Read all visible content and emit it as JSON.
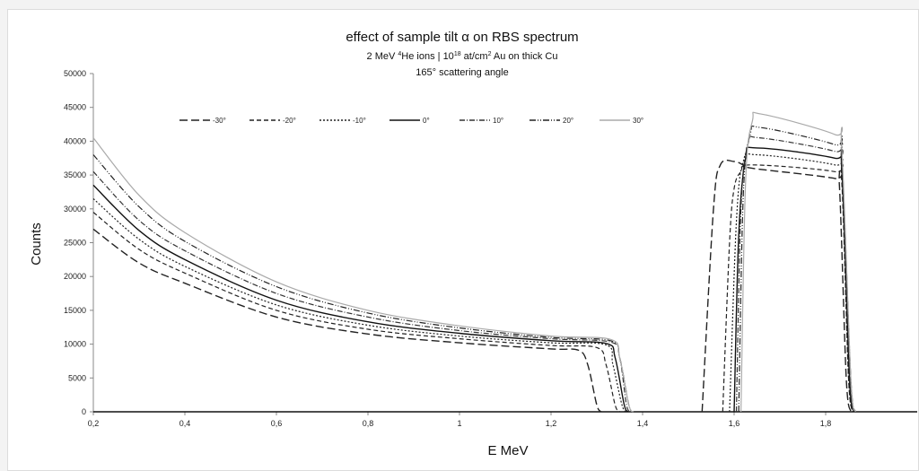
{
  "chart_data": {
    "type": "line",
    "title": "effect of sample tilt α on RBS spectrum",
    "subtitle_parts": {
      "a": "2 MeV ",
      "sup1": "4",
      "b": "He ions  |  10",
      "sup2": "18",
      "c": " at/cm",
      "sup3": "2",
      "d": " Au on thick Cu"
    },
    "subtitle2": "165° scattering angle",
    "xlabel": "E MeV",
    "ylabel": "Counts",
    "xlim": [
      0.2,
      2.0
    ],
    "ylim": [
      0,
      50000
    ],
    "x_ticks": [
      "0,2",
      "0,4",
      "0,6",
      "0,8",
      "1",
      "1,2",
      "1,4",
      "1,6",
      "1,8"
    ],
    "y_ticks": [
      "0",
      "5000",
      "10000",
      "15000",
      "20000",
      "25000",
      "30000",
      "35000",
      "40000",
      "45000",
      "50000"
    ],
    "grid": false,
    "legend_placement": "top-center",
    "series": [
      {
        "name": "-30°",
        "dash": "9,4",
        "stroke": "#222",
        "width": 1.4,
        "cu": [
          [
            0.2,
            27000
          ],
          [
            0.3,
            22000
          ],
          [
            0.4,
            19000
          ],
          [
            0.6,
            14000
          ],
          [
            0.8,
            11500
          ],
          [
            1.0,
            10200
          ],
          [
            1.2,
            9300
          ],
          [
            1.26,
            9100
          ],
          [
            1.28,
            7000
          ],
          [
            1.3,
            1000
          ],
          [
            1.31,
            0
          ]
        ],
        "au": [
          [
            1.53,
            0
          ],
          [
            1.555,
            30000
          ],
          [
            1.57,
            36500
          ],
          [
            1.6,
            37000
          ],
          [
            1.62,
            36500
          ],
          [
            1.64,
            36000
          ],
          [
            1.82,
            34500
          ],
          [
            1.83,
            33500
          ],
          [
            1.845,
            5000
          ],
          [
            1.855,
            0
          ]
        ]
      },
      {
        "name": "-20°",
        "dash": "5,3",
        "stroke": "#222",
        "width": 1.2,
        "cu": [
          [
            0.2,
            29500
          ],
          [
            0.3,
            24000
          ],
          [
            0.4,
            20500
          ],
          [
            0.6,
            15000
          ],
          [
            0.8,
            12200
          ],
          [
            1.0,
            10800
          ],
          [
            1.2,
            9800
          ],
          [
            1.3,
            9500
          ],
          [
            1.32,
            7000
          ],
          [
            1.34,
            1000
          ],
          [
            1.35,
            0
          ]
        ],
        "au": [
          [
            1.575,
            0
          ],
          [
            1.59,
            25000
          ],
          [
            1.6,
            33000
          ],
          [
            1.615,
            35500
          ],
          [
            1.64,
            36500
          ],
          [
            1.82,
            35500
          ],
          [
            1.835,
            34000
          ],
          [
            1.85,
            5000
          ],
          [
            1.86,
            0
          ]
        ]
      },
      {
        "name": "-10°",
        "dash": "2,2",
        "stroke": "#222",
        "width": 1.2,
        "cu": [
          [
            0.2,
            31500
          ],
          [
            0.3,
            25500
          ],
          [
            0.4,
            21500
          ],
          [
            0.6,
            15800
          ],
          [
            0.8,
            12800
          ],
          [
            1.0,
            11200
          ],
          [
            1.2,
            10200
          ],
          [
            1.32,
            9900
          ],
          [
            1.335,
            7000
          ],
          [
            1.355,
            1000
          ],
          [
            1.365,
            0
          ]
        ],
        "au": [
          [
            1.59,
            0
          ],
          [
            1.605,
            28000
          ],
          [
            1.62,
            37000
          ],
          [
            1.65,
            38000
          ],
          [
            1.82,
            36500
          ],
          [
            1.835,
            35000
          ],
          [
            1.85,
            5000
          ],
          [
            1.86,
            0
          ]
        ]
      },
      {
        "name": "0°",
        "dash": "",
        "stroke": "#111",
        "width": 1.4,
        "cu": [
          [
            0.2,
            33500
          ],
          [
            0.3,
            26800
          ],
          [
            0.4,
            22500
          ],
          [
            0.6,
            16500
          ],
          [
            0.8,
            13300
          ],
          [
            1.0,
            11600
          ],
          [
            1.2,
            10500
          ],
          [
            1.32,
            10100
          ],
          [
            1.34,
            8000
          ],
          [
            1.36,
            1000
          ],
          [
            1.37,
            0
          ]
        ],
        "au": [
          [
            1.6,
            0
          ],
          [
            1.61,
            26000
          ],
          [
            1.625,
            37500
          ],
          [
            1.65,
            39000
          ],
          [
            1.82,
            37500
          ],
          [
            1.835,
            36000
          ],
          [
            1.852,
            5000
          ],
          [
            1.862,
            0
          ]
        ]
      },
      {
        "name": "10°",
        "dash": "6,2,1,2",
        "stroke": "#333",
        "width": 1.2,
        "cu": [
          [
            0.2,
            35500
          ],
          [
            0.3,
            28300
          ],
          [
            0.4,
            23800
          ],
          [
            0.6,
            17500
          ],
          [
            0.8,
            14000
          ],
          [
            1.0,
            12000
          ],
          [
            1.2,
            10800
          ],
          [
            1.33,
            10300
          ],
          [
            1.35,
            8000
          ],
          [
            1.365,
            1000
          ],
          [
            1.375,
            0
          ]
        ],
        "au": [
          [
            1.605,
            0
          ],
          [
            1.615,
            30000
          ],
          [
            1.63,
            39500
          ],
          [
            1.655,
            40500
          ],
          [
            1.82,
            38500
          ],
          [
            1.835,
            37000
          ],
          [
            1.853,
            5000
          ],
          [
            1.863,
            0
          ]
        ]
      },
      {
        "name": "20°",
        "dash": "7,2,1,2,1,2",
        "stroke": "#222",
        "width": 1.2,
        "cu": [
          [
            0.2,
            38000
          ],
          [
            0.3,
            30300
          ],
          [
            0.4,
            25200
          ],
          [
            0.6,
            18500
          ],
          [
            0.8,
            14600
          ],
          [
            1.0,
            12400
          ],
          [
            1.2,
            11000
          ],
          [
            1.33,
            10500
          ],
          [
            1.35,
            8000
          ],
          [
            1.37,
            1000
          ],
          [
            1.38,
            0
          ]
        ],
        "au": [
          [
            1.61,
            0
          ],
          [
            1.62,
            32000
          ],
          [
            1.635,
            41000
          ],
          [
            1.66,
            42000
          ],
          [
            1.82,
            39500
          ],
          [
            1.835,
            38000
          ],
          [
            1.855,
            5000
          ],
          [
            1.865,
            0
          ]
        ]
      },
      {
        "name": "30°",
        "dash": "",
        "stroke": "#aaaaaa",
        "width": 1.2,
        "cu": [
          [
            0.2,
            40500
          ],
          [
            0.3,
            32000
          ],
          [
            0.4,
            26500
          ],
          [
            0.6,
            19200
          ],
          [
            0.8,
            15000
          ],
          [
            1.0,
            12700
          ],
          [
            1.2,
            11200
          ],
          [
            1.33,
            10700
          ],
          [
            1.35,
            8000
          ],
          [
            1.37,
            1000
          ],
          [
            1.38,
            0
          ]
        ],
        "au": [
          [
            1.615,
            0
          ],
          [
            1.625,
            34000
          ],
          [
            1.64,
            43000
          ],
          [
            1.66,
            44000
          ],
          [
            1.82,
            41000
          ],
          [
            1.835,
            39000
          ],
          [
            1.855,
            5000
          ],
          [
            1.865,
            0
          ]
        ]
      }
    ],
    "baseline": [
      [
        0.2,
        0
      ],
      [
        2.0,
        0
      ]
    ]
  }
}
